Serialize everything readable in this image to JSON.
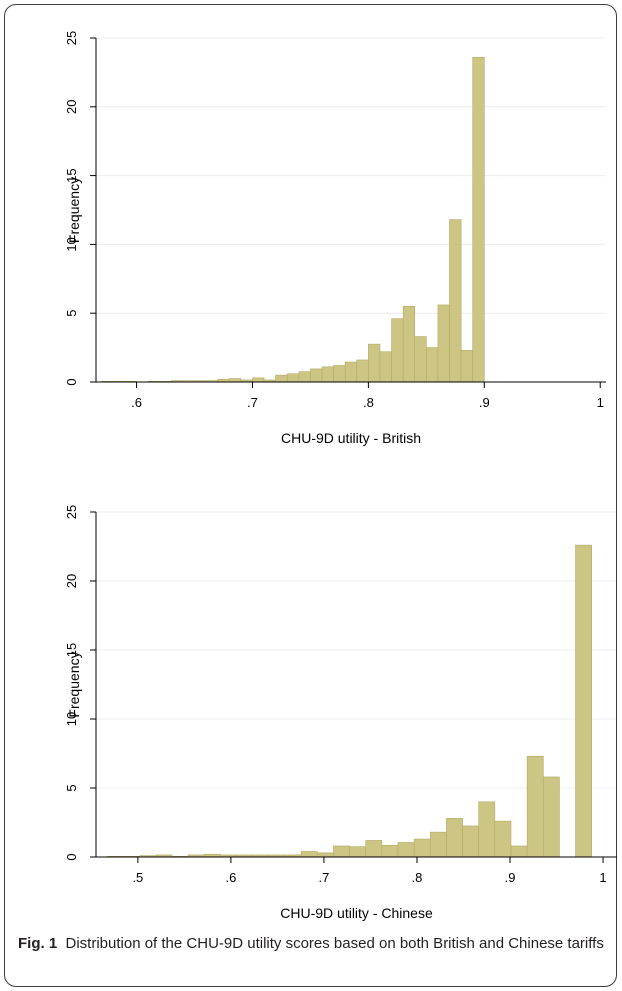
{
  "caption": {
    "label": "Fig. 1",
    "text": "Distribution of the CHU-9D utility scores based on both British and Chinese tariffs"
  },
  "colors": {
    "bar_fill": "#cdc584",
    "bar_stroke": "#b3aa62",
    "grid": "#e9ecef",
    "axis": "#000000"
  },
  "chart_data": [
    {
      "type": "bar",
      "subtype": "histogram",
      "title": "",
      "xlabel": "CHU-9D utility - British",
      "ylabel": "Frequency",
      "xlim": [
        0.565,
        1.005
      ],
      "ylim": [
        0,
        25
      ],
      "xticks": [
        0.6,
        0.7,
        0.8,
        0.9,
        1.0
      ],
      "xtick_labels": [
        ".6",
        ".7",
        ".8",
        ".9",
        "1"
      ],
      "yticks": [
        0,
        5,
        10,
        15,
        20,
        25
      ],
      "ytick_labels": [
        "0",
        "5",
        "10",
        "15",
        "20",
        "25"
      ],
      "grid": true,
      "bin_start": 0.57,
      "bin_width": 0.01,
      "values": [
        0.05,
        0.05,
        0.05,
        0,
        0.05,
        0.05,
        0.1,
        0.1,
        0.1,
        0.1,
        0.2,
        0.25,
        0.15,
        0.3,
        0.15,
        0.5,
        0.6,
        0.75,
        0.95,
        1.1,
        1.2,
        1.45,
        1.6,
        2.75,
        2.2,
        4.6,
        5.5,
        3.3,
        2.5,
        5.6,
        11.8,
        2.3,
        23.6
      ]
    },
    {
      "type": "bar",
      "subtype": "histogram",
      "title": "",
      "xlabel": "CHU-9D utility - Chinese",
      "ylabel": "Frequency",
      "xlim": [
        0.455,
        1.015
      ],
      "ylim": [
        0,
        25
      ],
      "xticks": [
        0.5,
        0.6,
        0.7,
        0.8,
        0.9,
        1.0
      ],
      "xtick_labels": [
        ".5",
        ".6",
        ".7",
        ".8",
        ".9",
        "1"
      ],
      "yticks": [
        0,
        5,
        10,
        15,
        20,
        25
      ],
      "ytick_labels": [
        "0",
        "5",
        "10",
        "15",
        "20",
        "25"
      ],
      "grid": true,
      "bin_start": 0.4673,
      "bin_width": 0.01735,
      "values": [
        0.05,
        0.05,
        0.1,
        0.15,
        0.05,
        0.15,
        0.2,
        0.15,
        0.15,
        0.15,
        0.15,
        0.15,
        0.4,
        0.3,
        0.8,
        0.75,
        1.2,
        0.85,
        1.05,
        1.3,
        1.8,
        2.8,
        2.25,
        4.0,
        2.6,
        0.8,
        7.3,
        5.8,
        0,
        22.6
      ]
    }
  ]
}
